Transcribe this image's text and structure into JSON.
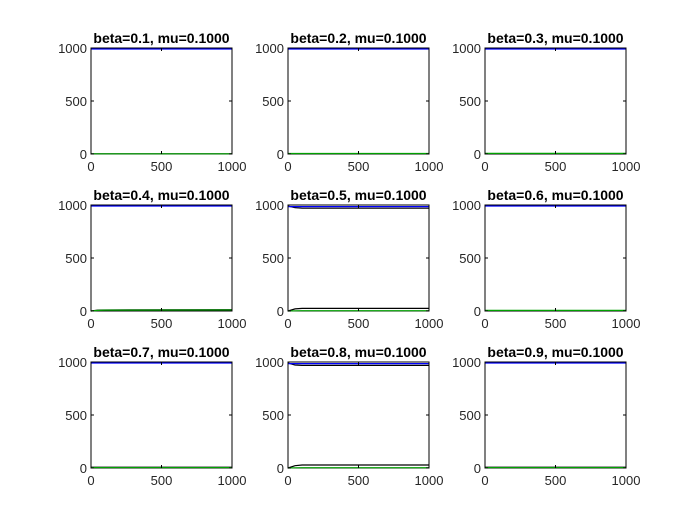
{
  "chart_data": [
    {
      "type": "line",
      "title": "beta=0.1, mu=0.1000",
      "xlim": [
        0,
        1000
      ],
      "ylim": [
        0,
        1000
      ],
      "xticks": [
        "0",
        "500",
        "1000"
      ],
      "yticks": [
        "0",
        "500",
        "1000"
      ],
      "series": [
        {
          "color": "#0000ff",
          "x": [
            0,
            1000
          ],
          "y": [
            990,
            990
          ]
        },
        {
          "color": "#000000",
          "x": [
            0,
            1000
          ],
          "y": [
            1,
            1
          ]
        },
        {
          "color": "#00a000",
          "x": [
            0,
            1000
          ],
          "y": [
            2,
            2
          ]
        }
      ]
    },
    {
      "type": "line",
      "title": "beta=0.2, mu=0.1000",
      "xlim": [
        0,
        1000
      ],
      "ylim": [
        0,
        1000
      ],
      "xticks": [
        "0",
        "500",
        "1000"
      ],
      "yticks": [
        "0",
        "500",
        "1000"
      ],
      "series": [
        {
          "color": "#0000ff",
          "x": [
            0,
            1000
          ],
          "y": [
            990,
            990
          ]
        },
        {
          "color": "#000000",
          "x": [
            0,
            1000
          ],
          "y": [
            3,
            3
          ]
        },
        {
          "color": "#00a000",
          "x": [
            0,
            1000
          ],
          "y": [
            5,
            5
          ]
        }
      ]
    },
    {
      "type": "line",
      "title": "beta=0.3, mu=0.1000",
      "xlim": [
        0,
        1000
      ],
      "ylim": [
        0,
        1000
      ],
      "xticks": [
        "0",
        "500",
        "1000"
      ],
      "yticks": [
        "0",
        "500",
        "1000"
      ],
      "series": [
        {
          "color": "#0000ff",
          "x": [
            0,
            1000
          ],
          "y": [
            990,
            990
          ]
        },
        {
          "color": "#000000",
          "x": [
            0,
            1000
          ],
          "y": [
            4,
            4
          ]
        },
        {
          "color": "#00a000",
          "x": [
            0,
            1000
          ],
          "y": [
            6,
            6
          ]
        }
      ]
    },
    {
      "type": "line",
      "title": "beta=0.4, mu=0.1000",
      "xlim": [
        0,
        1000
      ],
      "ylim": [
        0,
        1000
      ],
      "xticks": [
        "0",
        "500",
        "1000"
      ],
      "yticks": [
        "0",
        "500",
        "1000"
      ],
      "series": [
        {
          "color": "#0000ff",
          "x": [
            0,
            1000
          ],
          "y": [
            990,
            990
          ]
        },
        {
          "color": "#000000",
          "x": [
            0,
            50,
            100,
            1000
          ],
          "y": [
            0,
            8,
            10,
            12
          ]
        },
        {
          "color": "#00a000",
          "x": [
            0,
            50,
            100,
            1000
          ],
          "y": [
            0,
            6,
            8,
            10
          ]
        }
      ]
    },
    {
      "type": "line",
      "title": "beta=0.5, mu=0.1000",
      "xlim": [
        0,
        1000
      ],
      "ylim": [
        0,
        1000
      ],
      "xticks": [
        "0",
        "500",
        "1000"
      ],
      "yticks": [
        "0",
        "500",
        "1000"
      ],
      "series": [
        {
          "color": "#000000",
          "x": [
            0,
            50,
            100,
            1000
          ],
          "y": [
            990,
            975,
            970,
            970
          ]
        },
        {
          "color": "#0000ff",
          "x": [
            0,
            1000
          ],
          "y": [
            985,
            985
          ]
        },
        {
          "color": "#000000",
          "x": [
            0,
            50,
            100,
            1000
          ],
          "y": [
            0,
            20,
            25,
            25
          ]
        },
        {
          "color": "#00a000",
          "x": [
            0,
            50,
            100,
            1000
          ],
          "y": [
            0,
            2,
            3,
            3
          ]
        }
      ]
    },
    {
      "type": "line",
      "title": "beta=0.6, mu=0.1000",
      "xlim": [
        0,
        1000
      ],
      "ylim": [
        0,
        1000
      ],
      "xticks": [
        "0",
        "500",
        "1000"
      ],
      "yticks": [
        "0",
        "500",
        "1000"
      ],
      "series": [
        {
          "color": "#0000ff",
          "x": [
            0,
            1000
          ],
          "y": [
            990,
            990
          ]
        },
        {
          "color": "#000000",
          "x": [
            0,
            1000
          ],
          "y": [
            4,
            4
          ]
        },
        {
          "color": "#00a000",
          "x": [
            0,
            1000
          ],
          "y": [
            6,
            6
          ]
        }
      ]
    },
    {
      "type": "line",
      "title": "beta=0.7, mu=0.1000",
      "xlim": [
        0,
        1000
      ],
      "ylim": [
        0,
        1000
      ],
      "xticks": [
        "0",
        "500",
        "1000"
      ],
      "yticks": [
        "0",
        "500",
        "1000"
      ],
      "series": [
        {
          "color": "#0000ff",
          "x": [
            0,
            1000
          ],
          "y": [
            990,
            990
          ]
        },
        {
          "color": "#000000",
          "x": [
            0,
            1000
          ],
          "y": [
            7,
            7
          ]
        },
        {
          "color": "#00a000",
          "x": [
            0,
            1000
          ],
          "y": [
            4,
            4
          ]
        }
      ]
    },
    {
      "type": "line",
      "title": "beta=0.8, mu=0.1000",
      "xlim": [
        0,
        1000
      ],
      "ylim": [
        0,
        1000
      ],
      "xticks": [
        "0",
        "500",
        "1000"
      ],
      "yticks": [
        "0",
        "500",
        "1000"
      ],
      "series": [
        {
          "color": "#000000",
          "x": [
            0,
            50,
            100,
            1000
          ],
          "y": [
            990,
            972,
            968,
            968
          ]
        },
        {
          "color": "#0000ff",
          "x": [
            0,
            1000
          ],
          "y": [
            985,
            985
          ]
        },
        {
          "color": "#000000",
          "x": [
            0,
            50,
            100,
            1000
          ],
          "y": [
            0,
            22,
            28,
            28
          ]
        },
        {
          "color": "#00a000",
          "x": [
            0,
            50,
            100,
            1000
          ],
          "y": [
            0,
            2,
            3,
            3
          ]
        }
      ]
    },
    {
      "type": "line",
      "title": "beta=0.9, mu=0.1000",
      "xlim": [
        0,
        1000
      ],
      "ylim": [
        0,
        1000
      ],
      "xticks": [
        "0",
        "500",
        "1000"
      ],
      "yticks": [
        "0",
        "500",
        "1000"
      ],
      "series": [
        {
          "color": "#0000ff",
          "x": [
            0,
            1000
          ],
          "y": [
            990,
            990
          ]
        },
        {
          "color": "#000000",
          "x": [
            0,
            1000
          ],
          "y": [
            7,
            7
          ]
        },
        {
          "color": "#00a000",
          "x": [
            0,
            1000
          ],
          "y": [
            4,
            4
          ]
        }
      ]
    }
  ]
}
